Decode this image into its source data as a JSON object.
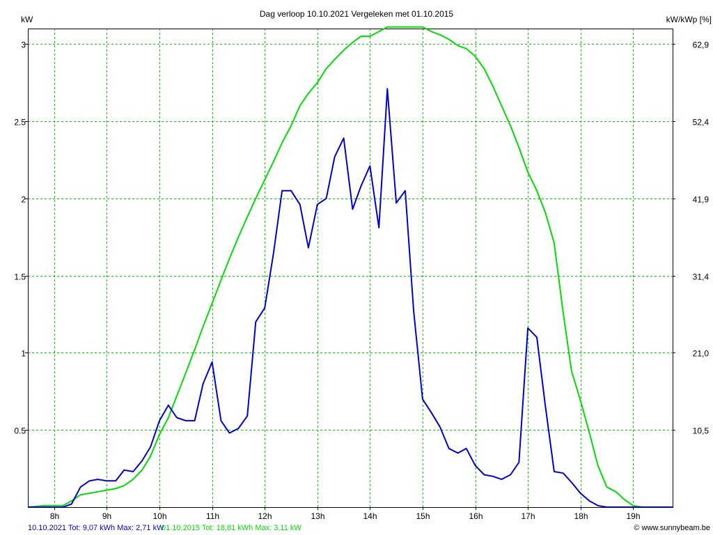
{
  "title": "Dag  verloop 10.10.2021   Vergeleken met 01.10.2015",
  "left_unit": "kW",
  "right_unit": "kW/kWp [%]",
  "footer": {
    "series1_text": "10.10.2021 Tot: 9,07 kWh Max: 2,71 kW",
    "series2_text": "01.10.2015 Tot: 18,81 kWh Max: 3,11 kW",
    "credit": "© www.sunnybeam.be"
  },
  "colors": {
    "series1": "#0000cc",
    "series2": "#00dd00",
    "grid": "#00cc00",
    "axis": "#000000"
  },
  "chart_data": {
    "type": "line",
    "xlabel": "",
    "ylabel": "kW",
    "xlim": [
      7.5,
      19.75
    ],
    "ylim": [
      0,
      3.1
    ],
    "x_ticks": [
      8,
      9,
      10,
      11,
      12,
      13,
      14,
      15,
      16,
      17,
      18,
      19
    ],
    "x_tick_labels": [
      "8h",
      "9h",
      "10h",
      "11h",
      "12h",
      "13h",
      "14h",
      "15h",
      "16h",
      "17h",
      "18h",
      "19h"
    ],
    "y_ticks": [
      0.5,
      1,
      1.5,
      2,
      2.5,
      3
    ],
    "y_tick_labels": [
      "0.5",
      "1",
      "1.5",
      "2",
      "2.5",
      "3"
    ],
    "y2_ticks": [
      0.5,
      1,
      1.5,
      2,
      2.5,
      3
    ],
    "y2_tick_labels": [
      "10,5",
      "21,0",
      "31,4",
      "41,9",
      "52,4",
      "62,9"
    ],
    "grid": true,
    "series": [
      {
        "name": "10.10.2021",
        "x": [
          7.5,
          7.83,
          8.17,
          8.33,
          8.5,
          8.67,
          8.83,
          9,
          9.17,
          9.33,
          9.5,
          9.67,
          9.83,
          10,
          10.17,
          10.33,
          10.5,
          10.67,
          10.83,
          11,
          11.17,
          11.33,
          11.5,
          11.67,
          11.83,
          12,
          12.17,
          12.33,
          12.5,
          12.67,
          12.83,
          13,
          13.17,
          13.33,
          13.5,
          13.67,
          13.83,
          14,
          14.17,
          14.33,
          14.5,
          14.67,
          14.83,
          15,
          15.17,
          15.33,
          15.5,
          15.67,
          15.83,
          16,
          16.17,
          16.33,
          16.5,
          16.67,
          16.83,
          17,
          17.17,
          17.33,
          17.5,
          17.67,
          17.83,
          18,
          18.17,
          18.33,
          18.5,
          18.67,
          18.83,
          19,
          19.17,
          19.33,
          19.5,
          19.75
        ],
        "values": [
          0,
          0,
          0,
          0.02,
          0.13,
          0.17,
          0.18,
          0.17,
          0.17,
          0.24,
          0.23,
          0.3,
          0.39,
          0.56,
          0.66,
          0.58,
          0.56,
          0.56,
          0.8,
          0.94,
          0.56,
          0.48,
          0.51,
          0.59,
          1.2,
          1.29,
          1.65,
          2.05,
          2.05,
          1.96,
          1.68,
          1.96,
          2,
          2.27,
          2.39,
          1.93,
          2.08,
          2.21,
          1.81,
          2.71,
          1.97,
          2.05,
          1.27,
          0.7,
          0.61,
          0.52,
          0.38,
          0.35,
          0.38,
          0.27,
          0.21,
          0.2,
          0.18,
          0.21,
          0.29,
          1.16,
          1.1,
          0.66,
          0.23,
          0.22,
          0.16,
          0.09,
          0.04,
          0.01,
          0,
          0,
          0,
          0,
          0,
          0,
          0,
          0
        ]
      },
      {
        "name": "01.10.2015",
        "x": [
          7.5,
          7.83,
          8.17,
          8.33,
          8.5,
          8.67,
          8.83,
          9,
          9.17,
          9.33,
          9.5,
          9.67,
          9.83,
          10,
          10.17,
          10.33,
          10.5,
          10.67,
          10.83,
          11,
          11.17,
          11.33,
          11.5,
          11.67,
          11.83,
          12,
          12.17,
          12.33,
          12.5,
          12.67,
          12.83,
          13,
          13.17,
          13.33,
          13.5,
          13.67,
          13.83,
          14,
          14.17,
          14.33,
          14.5,
          14.67,
          14.83,
          15,
          15.17,
          15.33,
          15.5,
          15.67,
          15.83,
          16,
          16.17,
          16.33,
          16.5,
          16.67,
          16.83,
          17,
          17.17,
          17.33,
          17.5,
          17.67,
          17.83,
          18,
          18.17,
          18.33,
          18.5,
          18.67,
          18.83,
          19,
          19.17,
          19.33,
          19.5,
          19.75
        ],
        "values": [
          0,
          0.01,
          0.01,
          0.04,
          0.08,
          0.09,
          0.1,
          0.11,
          0.12,
          0.14,
          0.18,
          0.24,
          0.33,
          0.47,
          0.58,
          0.72,
          0.87,
          1.02,
          1.17,
          1.32,
          1.47,
          1.61,
          1.75,
          1.88,
          2,
          2.12,
          2.24,
          2.36,
          2.47,
          2.6,
          2.68,
          2.75,
          2.84,
          2.9,
          2.96,
          3.01,
          3.05,
          3.05,
          3.08,
          3.11,
          3.11,
          3.11,
          3.11,
          3.11,
          3.08,
          3.06,
          3.03,
          2.99,
          2.97,
          2.92,
          2.84,
          2.73,
          2.6,
          2.47,
          2.33,
          2.17,
          2.05,
          1.91,
          1.71,
          1.26,
          0.88,
          0.69,
          0.48,
          0.27,
          0.13,
          0.1,
          0.05,
          0.01,
          0,
          0,
          0,
          0
        ]
      }
    ]
  }
}
